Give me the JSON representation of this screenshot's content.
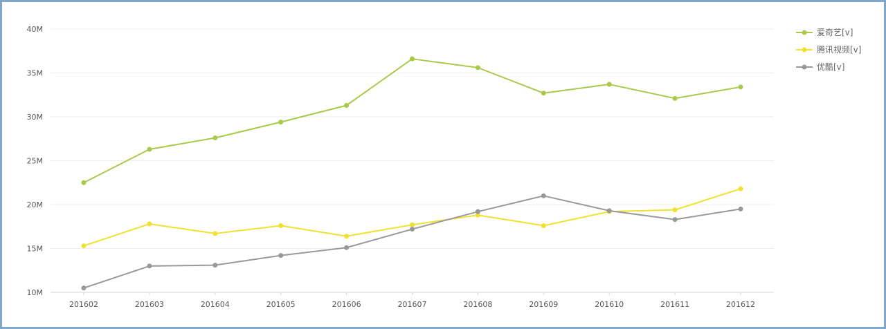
{
  "chart_data": {
    "type": "line",
    "categories": [
      "201602",
      "201603",
      "201604",
      "201605",
      "201606",
      "201607",
      "201608",
      "201609",
      "201610",
      "201611",
      "201612"
    ],
    "ylim": [
      10,
      40
    ],
    "yticks": [
      10,
      15,
      20,
      25,
      30,
      35,
      40
    ],
    "ytick_labels": [
      "10M",
      "15M",
      "20M",
      "25M",
      "30M",
      "35M",
      "40M"
    ],
    "grid": true,
    "legend_position": "top-right",
    "series": [
      {
        "name": "爱奇艺[v]",
        "color": "#a8c94a",
        "values": [
          22.5,
          26.3,
          27.6,
          29.4,
          31.3,
          36.6,
          35.6,
          32.7,
          33.7,
          32.1,
          33.4
        ]
      },
      {
        "name": "腾讯视频[v]",
        "color": "#f0e130",
        "values": [
          15.3,
          17.8,
          16.7,
          17.6,
          16.4,
          17.7,
          18.8,
          17.6,
          19.2,
          19.4,
          21.8
        ]
      },
      {
        "name": "优酷[v]",
        "color": "#999999",
        "values": [
          10.5,
          13.0,
          13.1,
          14.2,
          15.1,
          17.2,
          19.2,
          21.0,
          19.3,
          18.3,
          19.5
        ]
      }
    ]
  }
}
